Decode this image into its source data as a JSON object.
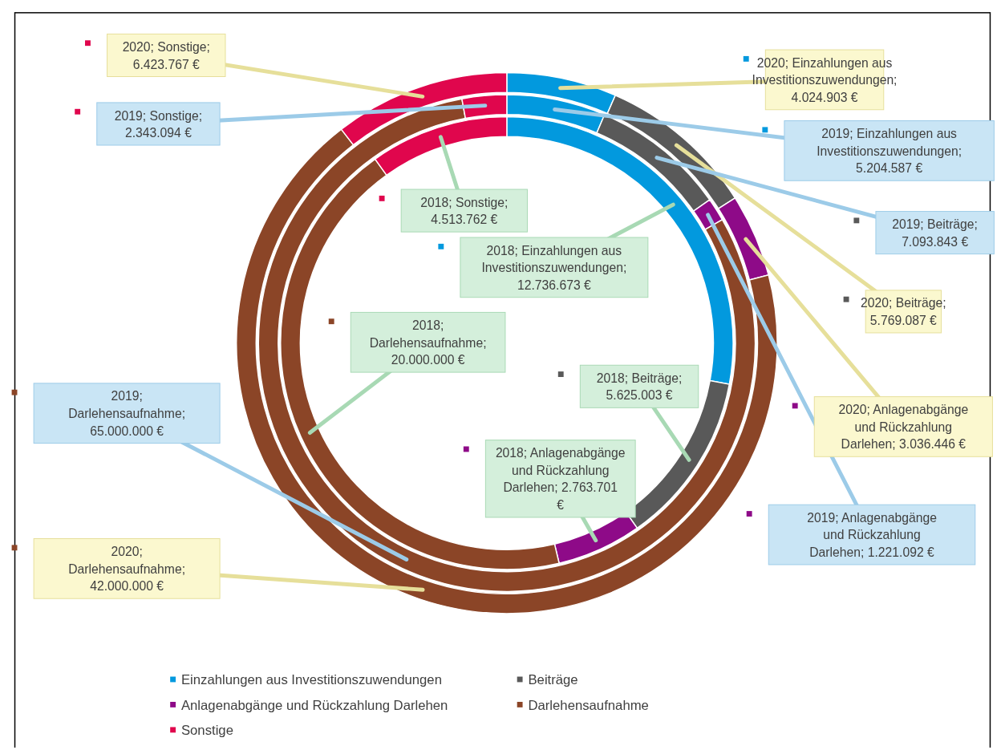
{
  "chart_data": {
    "type": "donut",
    "categories": [
      "Einzahlungen aus Investitionszuwendungen",
      "Beiträge",
      "Anlagenabgänge und Rückzahlung Darlehen",
      "Darlehensaufnahme",
      "Sonstige"
    ],
    "colors": [
      "#0299de",
      "#595959",
      "#8e0a88",
      "#8b4527",
      "#e0064d"
    ],
    "series": [
      {
        "values": [
          4024903,
          5769087,
          3036446,
          42000000,
          6423767
        ],
        "value_labels": [
          "2020; Einzahlungen aus Investitionszuwendungen; 4.024.903 €",
          "2020; Beiträge; 5.769.087 €",
          "2020; Anlagenabgänge und Rückzahlung Darlehen;  3.036.446 €",
          "2020; Darlehensaufnahme; 42.000.000 €",
          "2020; Sonstige; 6.423.767 €"
        ]
      },
      {
        "values": [
          5204587,
          7093843,
          1221092,
          65000000,
          2343094
        ],
        "value_labels": [
          "2019; Einzahlungen aus Investitionszuwendungen; 5.204.587 €",
          "2019; Beiträge; 7.093.843 €",
          "2019; Anlagenabgänge und Rückzahlung Darlehen;  1.221.092 €",
          "2019; Darlehensaufnahme; 65.000.000 €",
          "2019; Sonstige; 2.343.094 €"
        ]
      },
      {
        "values": [
          12736673,
          5625003,
          2763701,
          20000000,
          4513762
        ],
        "value_labels": [
          "2018; Einzahlungen aus Investitionszuwendungen; 12.736.673 €",
          "2018; Beiträge; 5.625.003 €",
          "2018; Anlagenabgänge und Rückzahlung Darlehen;  2.763.701 €",
          "2018; Darlehensaufnahme; 20.000.000 €",
          "2018; Sonstige; 4.513.762 €"
        ]
      }
    ],
    "legend": "bottom"
  }
}
